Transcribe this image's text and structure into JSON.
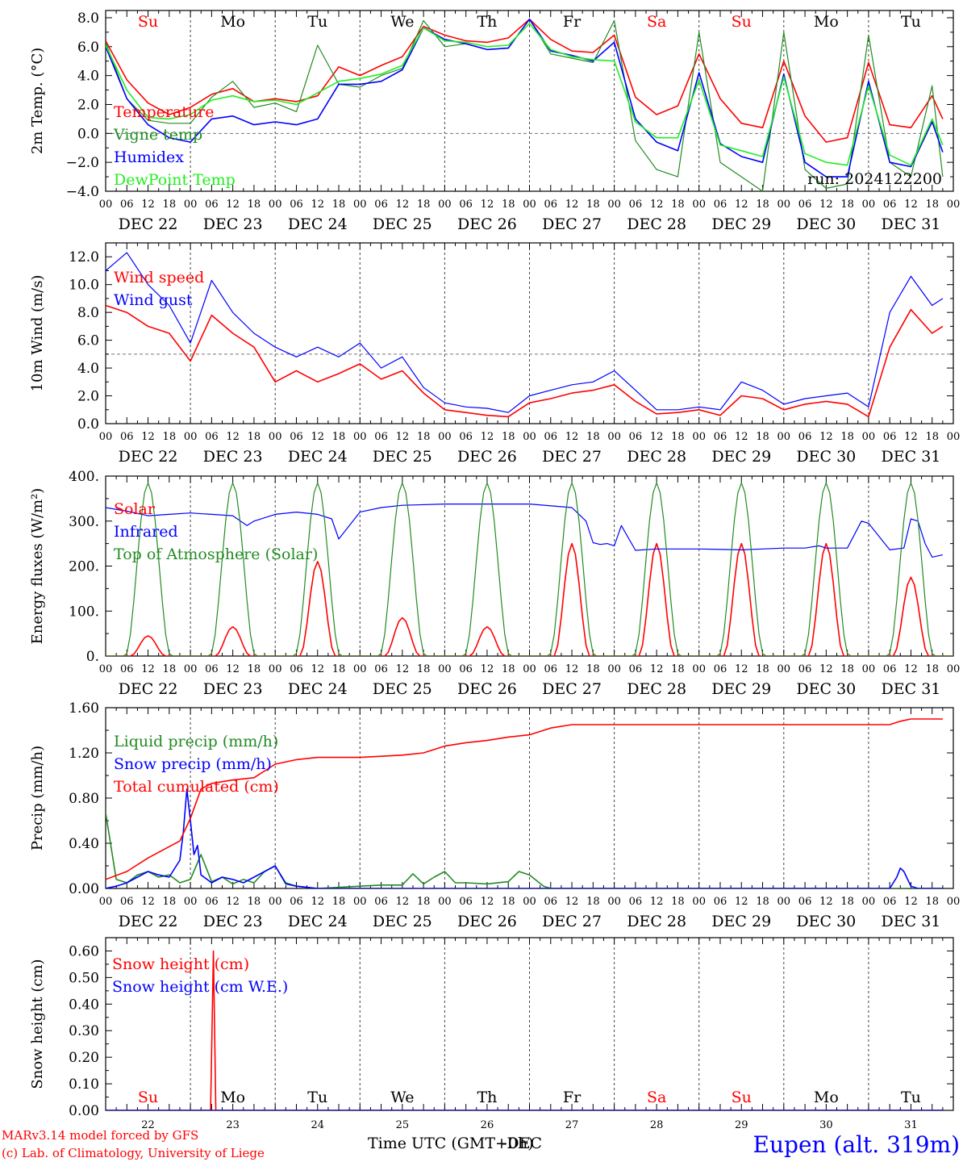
{
  "meta": {
    "run_label": "run: 2024122200",
    "footer_model": "MARv3.14 model forced by GFS",
    "footer_copyright": "(c) Lab. of Climatology, University of Liege",
    "footer_axis_title": "Time UTC (GMT+0h)",
    "footer_overlap": "-DEC",
    "footer_station": "Eupen (alt. 319m)"
  },
  "colors": {
    "red": "#ff0000",
    "green": "#228b22",
    "blue": "#0000ff",
    "lightgreen": "#22ee22",
    "axis": "#000000",
    "grid": "#777777"
  },
  "axis": {
    "hours": [
      "00",
      "06",
      "12",
      "18"
    ],
    "last_hour": "00",
    "dates": [
      "DEC 22",
      "DEC 23",
      "DEC 24",
      "DEC 25",
      "DEC 26",
      "DEC 27",
      "DEC 28",
      "DEC 29",
      "DEC 30",
      "DEC 31"
    ],
    "weekdays": [
      "Su",
      "Mo",
      "Tu",
      "We",
      "Th",
      "Fr",
      "Sa",
      "Su",
      "Mo",
      "Tu"
    ],
    "weekday_colors": [
      "#ff0000",
      "#000000",
      "#000000",
      "#000000",
      "#000000",
      "#000000",
      "#ff0000",
      "#ff0000",
      "#000000",
      "#000000"
    ],
    "day_numbers": [
      "22",
      "23",
      "24",
      "25",
      "26",
      "27",
      "28",
      "29",
      "30",
      "31"
    ]
  },
  "chart_data": [
    {
      "type": "line",
      "id": "temperature",
      "ylabel": "2m Temp. (°C)",
      "ylim": [
        -4,
        8.5
      ],
      "yticks": [
        -4,
        -2,
        0,
        2,
        4,
        6,
        8
      ],
      "ytick_labels": [
        "−4.0",
        "−2.0",
        "0.0",
        "2.0",
        "4.0",
        "6.0",
        "8.0"
      ],
      "ref_line": 0,
      "x_unit": "hours since DEC 22 00 UTC",
      "series": [
        {
          "name": "Temperature",
          "color": "#ff0000",
          "x": [
            0,
            6,
            12,
            18,
            24,
            30,
            36,
            42,
            48,
            54,
            60,
            66,
            72,
            78,
            84,
            90,
            96,
            102,
            108,
            114,
            120,
            126,
            132,
            138,
            144,
            150,
            156,
            162,
            168,
            174,
            180,
            186,
            192,
            198,
            204,
            210,
            216,
            222,
            228,
            234,
            237
          ],
          "values": [
            6.4,
            3.7,
            2.1,
            1.3,
            1.8,
            2.7,
            3.1,
            2.2,
            2.4,
            2.2,
            2.6,
            4.6,
            4.0,
            4.7,
            5.3,
            7.4,
            6.8,
            6.4,
            6.3,
            6.6,
            7.9,
            6.5,
            5.7,
            5.6,
            6.8,
            2.5,
            1.3,
            1.9,
            5.5,
            2.4,
            0.7,
            0.4,
            5.0,
            1.2,
            -0.6,
            -0.3,
            4.9,
            0.6,
            0.4,
            2.6,
            1.0
          ]
        },
        {
          "name": "Vigne temp",
          "color": "#228b22",
          "x": [
            0,
            6,
            12,
            18,
            24,
            30,
            36,
            42,
            48,
            54,
            60,
            66,
            72,
            78,
            84,
            90,
            96,
            102,
            108,
            114,
            120,
            126,
            132,
            138,
            144,
            150,
            156,
            162,
            168,
            174,
            180,
            186,
            192,
            198,
            204,
            210,
            216,
            222,
            228,
            234,
            237
          ],
          "values": [
            6.3,
            2.4,
            0.9,
            0.7,
            0.7,
            2.5,
            3.6,
            1.8,
            2.1,
            1.5,
            6.1,
            3.4,
            3.2,
            4.0,
            4.5,
            7.8,
            6.0,
            6.2,
            5.8,
            5.9,
            7.9,
            5.5,
            5.2,
            4.9,
            7.8,
            -0.5,
            -2.5,
            -3.0,
            7.0,
            -2.0,
            -3.0,
            -4.0,
            7.0,
            -2.5,
            -3.8,
            -3.5,
            6.8,
            -2.0,
            -3.0,
            3.3,
            -3.0
          ]
        },
        {
          "name": "Humidex",
          "color": "#0000ff",
          "x": [
            0,
            6,
            12,
            18,
            24,
            30,
            36,
            42,
            48,
            54,
            60,
            66,
            72,
            78,
            84,
            90,
            96,
            102,
            108,
            114,
            120,
            126,
            132,
            138,
            144,
            150,
            156,
            162,
            168,
            174,
            180,
            186,
            192,
            198,
            204,
            210,
            216,
            222,
            228,
            234,
            237
          ],
          "values": [
            6.0,
            2.4,
            0.6,
            -0.3,
            -0.6,
            1.0,
            1.2,
            0.6,
            0.8,
            0.6,
            1.0,
            3.4,
            3.4,
            3.6,
            4.4,
            7.3,
            6.5,
            6.2,
            5.8,
            5.9,
            7.9,
            5.7,
            5.4,
            5.0,
            6.3,
            1.0,
            -0.6,
            -1.2,
            4.2,
            -0.7,
            -1.6,
            -2.0,
            4.1,
            -2.0,
            -3.0,
            -3.0,
            3.6,
            -2.0,
            -2.3,
            0.8,
            -1.3
          ]
        },
        {
          "name": "DewPoint Temp",
          "color": "#22ee22",
          "x": [
            0,
            6,
            12,
            18,
            24,
            30,
            36,
            42,
            48,
            54,
            60,
            66,
            72,
            78,
            84,
            90,
            96,
            102,
            108,
            114,
            120,
            126,
            132,
            138,
            144,
            150,
            156,
            162,
            168,
            174,
            180,
            186,
            192,
            198,
            204,
            210,
            216,
            222,
            228,
            234,
            237
          ],
          "values": [
            6.1,
            3.0,
            1.1,
            1.0,
            1.3,
            2.3,
            2.6,
            2.2,
            2.3,
            2.0,
            2.8,
            3.6,
            3.8,
            4.1,
            4.7,
            7.3,
            6.4,
            6.3,
            6.0,
            6.1,
            7.6,
            5.8,
            5.3,
            5.1,
            5.0,
            0.8,
            -0.3,
            -0.3,
            3.7,
            -0.8,
            -1.2,
            -1.6,
            3.9,
            -1.4,
            -2.0,
            -2.2,
            3.3,
            -1.5,
            -2.2,
            1.0,
            -0.8
          ]
        }
      ]
    },
    {
      "type": "line",
      "id": "wind",
      "ylabel": "10m Wind (m/s)",
      "ylim": [
        0,
        13
      ],
      "yticks": [
        0,
        2,
        4,
        6,
        8,
        10,
        12
      ],
      "ytick_labels": [
        "0.0",
        "2.0",
        "4.0",
        "6.0",
        "8.0",
        "10.0",
        "12.0"
      ],
      "ref_line": 5,
      "x_unit": "hours since DEC 22 00 UTC",
      "series": [
        {
          "name": "Wind speed",
          "color": "#ff0000",
          "x": [
            0,
            6,
            12,
            18,
            24,
            30,
            36,
            42,
            48,
            54,
            60,
            66,
            72,
            78,
            84,
            90,
            96,
            102,
            108,
            114,
            120,
            126,
            132,
            138,
            144,
            150,
            156,
            162,
            168,
            174,
            180,
            186,
            192,
            198,
            204,
            210,
            216,
            222,
            228,
            234,
            237
          ],
          "values": [
            8.5,
            8.0,
            7.0,
            6.5,
            4.5,
            7.8,
            6.5,
            5.5,
            3.0,
            3.8,
            3.0,
            3.6,
            4.3,
            3.2,
            3.8,
            2.2,
            1.0,
            0.8,
            0.6,
            0.5,
            1.5,
            1.8,
            2.2,
            2.4,
            2.8,
            1.6,
            0.7,
            0.8,
            1.0,
            0.6,
            2.0,
            1.8,
            1.0,
            1.4,
            1.6,
            1.4,
            0.5,
            5.5,
            8.2,
            6.5,
            7.0
          ]
        },
        {
          "name": "Wind gust",
          "color": "#0000ff",
          "x": [
            0,
            6,
            12,
            18,
            24,
            30,
            36,
            42,
            48,
            54,
            60,
            66,
            72,
            78,
            84,
            90,
            96,
            102,
            108,
            114,
            120,
            126,
            132,
            138,
            144,
            150,
            156,
            162,
            168,
            174,
            180,
            186,
            192,
            198,
            204,
            210,
            216,
            222,
            228,
            234,
            237
          ],
          "values": [
            11.0,
            12.3,
            10.0,
            8.5,
            5.8,
            10.3,
            8.0,
            6.5,
            5.5,
            4.8,
            5.5,
            4.8,
            5.8,
            4.0,
            4.8,
            2.6,
            1.5,
            1.2,
            1.1,
            0.8,
            2.0,
            2.4,
            2.8,
            3.0,
            3.8,
            2.4,
            1.0,
            1.0,
            1.2,
            1.0,
            3.0,
            2.4,
            1.4,
            1.8,
            2.0,
            2.2,
            1.2,
            8.0,
            10.6,
            8.5,
            9.0
          ]
        }
      ]
    },
    {
      "type": "line",
      "id": "energy",
      "ylabel": "Energy fluxes (W/m²)",
      "ylim": [
        0,
        400
      ],
      "yticks": [
        0,
        100,
        200,
        300,
        400
      ],
      "ytick_labels": [
        "0.",
        "100.",
        "200.",
        "300.",
        "400."
      ],
      "x_unit": "hours since DEC 22 00 UTC",
      "daily_peak_hour": 12,
      "series": [
        {
          "name": "Solar",
          "color": "#ff0000",
          "daily_peaks": [
            45,
            65,
            210,
            85,
            65,
            250,
            250,
            250,
            250,
            175
          ]
        },
        {
          "name": "Infrared",
          "color": "#0000ff",
          "x": [
            0,
            6,
            12,
            18,
            24,
            30,
            36,
            40,
            42,
            48,
            54,
            60,
            64,
            66,
            72,
            78,
            84,
            96,
            108,
            120,
            132,
            136,
            138,
            140,
            142,
            144,
            146,
            150,
            156,
            168,
            180,
            186,
            192,
            198,
            202,
            204,
            210,
            214,
            216,
            222,
            226,
            228,
            230,
            232,
            234,
            237
          ],
          "values": [
            330,
            322,
            312,
            315,
            318,
            315,
            312,
            290,
            300,
            315,
            320,
            315,
            305,
            260,
            320,
            330,
            335,
            338,
            338,
            338,
            330,
            300,
            252,
            248,
            250,
            245,
            290,
            235,
            238,
            238,
            236,
            238,
            240,
            240,
            245,
            240,
            240,
            300,
            295,
            236,
            240,
            305,
            300,
            250,
            220,
            225
          ]
        },
        {
          "name": "Top of Atmosphere (Solar)",
          "color": "#228b22",
          "daily_peaks": [
            385,
            385,
            385,
            385,
            385,
            385,
            385,
            385,
            385,
            385
          ]
        }
      ]
    },
    {
      "type": "line",
      "id": "precip",
      "ylabel": "Precip (mm/h)",
      "ylim": [
        0,
        1.6
      ],
      "yticks": [
        0,
        0.4,
        0.8,
        1.2,
        1.6
      ],
      "ytick_labels": [
        "0.00",
        "0.40",
        "0.80",
        "1.20",
        "1.60"
      ],
      "x_unit": "hours since DEC 22 00 UTC",
      "series": [
        {
          "name": "Liquid precip (mm/h)",
          "color": "#228b22",
          "x": [
            0,
            3,
            6,
            9,
            12,
            15,
            18,
            21,
            24,
            27,
            30,
            33,
            36,
            39,
            42,
            45,
            48,
            51,
            54,
            60,
            72,
            78,
            84,
            87,
            90,
            93,
            96,
            99,
            102,
            108,
            114,
            117,
            120,
            124,
            126,
            132,
            168,
            237
          ],
          "values": [
            0.67,
            0.08,
            0.05,
            0.12,
            0.15,
            0.1,
            0.12,
            0.05,
            0.08,
            0.3,
            0.06,
            0.1,
            0.04,
            0.08,
            0.05,
            0.15,
            0.2,
            0.05,
            0.02,
            0.0,
            0.02,
            0.03,
            0.03,
            0.13,
            0.04,
            0.1,
            0.15,
            0.05,
            0.05,
            0.04,
            0.06,
            0.15,
            0.12,
            0.02,
            0.0,
            0.0,
            0.0,
            0.0
          ]
        },
        {
          "name": "Snow precip (mm/h)",
          "color": "#0000ff",
          "x": [
            0,
            3,
            6,
            9,
            12,
            15,
            18,
            21,
            22,
            23,
            24,
            25,
            26,
            27,
            30,
            33,
            36,
            39,
            42,
            45,
            48,
            51,
            54,
            57,
            60,
            72,
            222,
            224,
            225,
            226,
            228,
            230,
            237
          ],
          "values": [
            0.0,
            0.02,
            0.05,
            0.1,
            0.15,
            0.12,
            0.1,
            0.25,
            0.5,
            0.88,
            0.6,
            0.3,
            0.38,
            0.12,
            0.05,
            0.1,
            0.08,
            0.05,
            0.1,
            0.15,
            0.2,
            0.04,
            0.02,
            0.01,
            0.0,
            0.0,
            0.0,
            0.1,
            0.18,
            0.15,
            0.02,
            0.0,
            0.0
          ]
        },
        {
          "name": "Total cumulated (cm)",
          "color": "#ff0000",
          "x": [
            0,
            6,
            12,
            18,
            21,
            24,
            27,
            30,
            36,
            42,
            48,
            54,
            60,
            72,
            84,
            90,
            96,
            102,
            108,
            114,
            120,
            126,
            132,
            138,
            144,
            168,
            192,
            216,
            222,
            225,
            228,
            237
          ],
          "values": [
            0.08,
            0.15,
            0.27,
            0.37,
            0.42,
            0.62,
            0.88,
            0.93,
            0.96,
            0.98,
            1.1,
            1.14,
            1.16,
            1.16,
            1.18,
            1.2,
            1.26,
            1.29,
            1.31,
            1.34,
            1.36,
            1.42,
            1.45,
            1.45,
            1.45,
            1.45,
            1.45,
            1.45,
            1.45,
            1.48,
            1.5,
            1.5
          ]
        }
      ]
    },
    {
      "type": "line",
      "id": "snow",
      "ylabel": "Snow height (cm)",
      "ylim": [
        0,
        0.65
      ],
      "yticks": [
        0,
        0.1,
        0.2,
        0.3,
        0.4,
        0.5,
        0.6
      ],
      "ytick_labels": [
        "0.00",
        "0.10",
        "0.20",
        "0.30",
        "0.40",
        "0.50",
        "0.60"
      ],
      "x_unit": "hours since DEC 22 00 UTC",
      "series": [
        {
          "name": "Snow height (cm)",
          "color": "#ff0000",
          "x": [
            0,
            29.7,
            30.5,
            31.2,
            237
          ],
          "values": [
            0,
            0,
            0.6,
            0,
            0
          ]
        },
        {
          "name": "Snow height (cm W.E.)",
          "color": "#0000ff",
          "x": [
            0,
            237
          ],
          "values": [
            0,
            0
          ]
        }
      ]
    }
  ]
}
